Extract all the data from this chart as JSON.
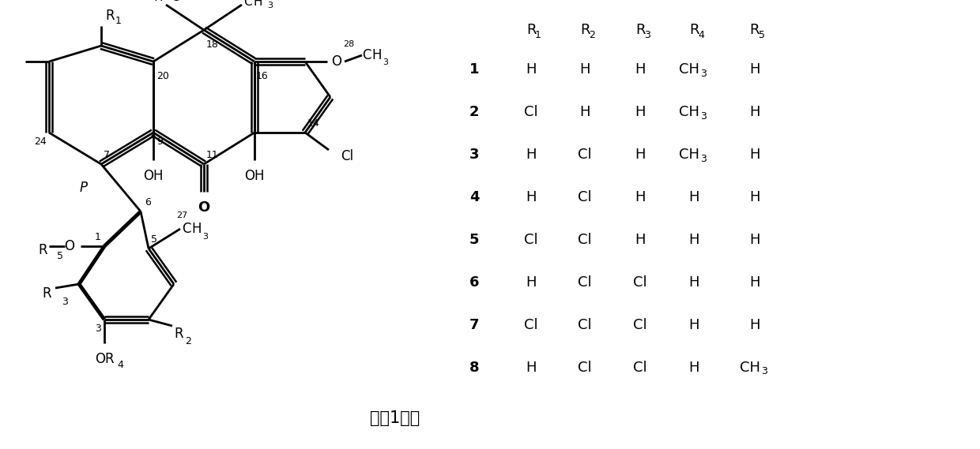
{
  "background_color": "#ffffff",
  "title_text": "式（1）。",
  "table_rows": [
    [
      "1",
      "H",
      "H",
      "H",
      "CH3",
      "H"
    ],
    [
      "2",
      "Cl",
      "H",
      "H",
      "CH3",
      "H"
    ],
    [
      "3",
      "H",
      "Cl",
      "H",
      "CH3",
      "H"
    ],
    [
      "4",
      "H",
      "Cl",
      "H",
      "H",
      "H"
    ],
    [
      "5",
      "Cl",
      "Cl",
      "H",
      "H",
      "H"
    ],
    [
      "6",
      "H",
      "Cl",
      "Cl",
      "H",
      "H"
    ],
    [
      "7",
      "Cl",
      "Cl",
      "Cl",
      "H",
      "H"
    ],
    [
      "8",
      "H",
      "Cl",
      "Cl",
      "H",
      "CH3"
    ]
  ],
  "figsize": [
    12.4,
    5.69
  ],
  "dpi": 100
}
